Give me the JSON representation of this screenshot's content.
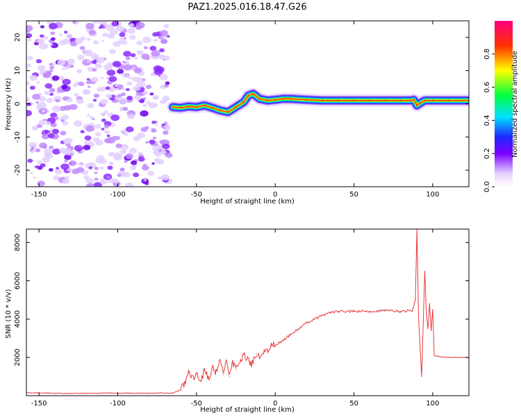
{
  "title": "PAZ1.2025.016.18.47.G26",
  "chart_data": [
    {
      "type": "heatmap",
      "xlabel": "Height of straight line (km)",
      "ylabel": "Frequency (Hz)",
      "xlim": [
        -158,
        123
      ],
      "ylim": [
        -25,
        25
      ],
      "x_ticks": [
        -150,
        -100,
        -50,
        0,
        50,
        100
      ],
      "y_ticks": [
        -20,
        -10,
        0,
        10,
        20
      ],
      "colorbar": {
        "label": "Normalized spectral amplitude",
        "range": [
          0,
          1
        ],
        "ticks": [
          0.0,
          0.2,
          0.4,
          0.6,
          0.8
        ],
        "tick_labels": [
          "0.0",
          "0.2",
          "0.4",
          "0.6",
          "0.8"
        ],
        "colormap": "rainbow (white-violet-blue-cyan-green-yellow-red-magenta)"
      },
      "noise_region_x": [
        -158,
        -67
      ],
      "ridge": {
        "x": [
          -65,
          -60,
          -55,
          -50,
          -45,
          -40,
          -35,
          -30,
          -25,
          -20,
          -17,
          -14,
          -10,
          -5,
          0,
          5,
          10,
          20,
          30,
          40,
          50,
          60,
          70,
          80,
          86,
          88,
          90,
          92,
          95,
          100,
          110,
          123
        ],
        "y": [
          -1.0,
          -1.2,
          -0.8,
          -1.0,
          -0.5,
          -1.2,
          -2.0,
          -2.5,
          -1.0,
          0.5,
          2.5,
          3.0,
          1.5,
          1.0,
          1.2,
          1.5,
          1.5,
          1.2,
          1.0,
          1.0,
          1.0,
          1.0,
          1.0,
          1.0,
          1.0,
          1.2,
          -0.5,
          0.2,
          1.0,
          1.0,
          1.0,
          1.0
        ]
      },
      "grid": false
    },
    {
      "type": "line",
      "xlabel": "Height of straight line (km)",
      "ylabel": "SNR (10 * v/v)",
      "xlim": [
        -158,
        123
      ],
      "ylim": [
        0,
        8700
      ],
      "x_ticks": [
        -150,
        -100,
        -50,
        0,
        50,
        100
      ],
      "y_ticks": [
        2000,
        4000,
        6000,
        8000
      ],
      "series": [
        {
          "color": "#e8373a",
          "x": [
            -158,
            -130,
            -100,
            -80,
            -65,
            -60,
            -57,
            -55,
            -52,
            -50,
            -47,
            -45,
            -42,
            -40,
            -38,
            -35,
            -33,
            -31,
            -29,
            -27,
            -25,
            -22,
            -20,
            -17,
            -15,
            -12,
            -10,
            -7,
            -5,
            -2,
            0,
            5,
            10,
            15,
            20,
            25,
            30,
            35,
            40,
            50,
            60,
            70,
            80,
            85,
            87,
            89,
            90,
            91,
            92,
            93,
            94,
            95,
            96,
            97,
            98,
            99,
            100,
            101,
            103,
            110,
            123
          ],
          "y": [
            150,
            120,
            140,
            130,
            140,
            300,
            700,
            1200,
            900,
            1100,
            800,
            1300,
            900,
            1500,
            1200,
            1900,
            1100,
            1800,
            1000,
            1700,
            1400,
            1800,
            2200,
            1800,
            1600,
            2200,
            2000,
            2400,
            2300,
            2700,
            2600,
            2900,
            3200,
            3500,
            3800,
            4000,
            4200,
            4350,
            4400,
            4400,
            4400,
            4450,
            4400,
            4450,
            4400,
            5000,
            8700,
            4200,
            2500,
            1000,
            3800,
            6500,
            4300,
            3500,
            4800,
            3400,
            4500,
            2100,
            2050,
            2000,
            2000
          ]
        }
      ],
      "grid": false
    }
  ]
}
